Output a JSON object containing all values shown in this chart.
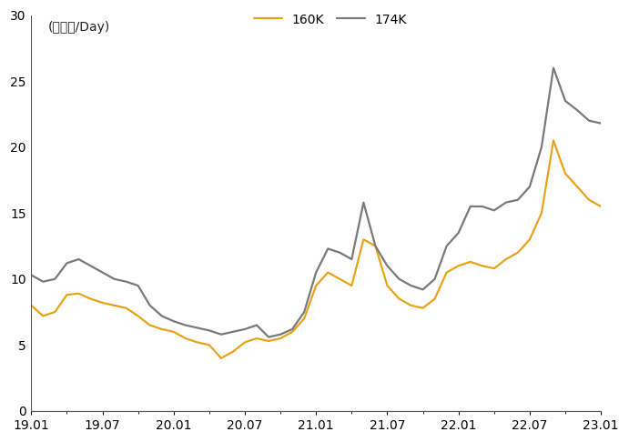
{
  "title_label": "(만달러/Day)",
  "legend_160k": "160K",
  "legend_174k": "174K",
  "color_160k": "#E8A317",
  "color_174k": "#7A7A7A",
  "ylim": [
    0,
    30
  ],
  "yticks": [
    0,
    5,
    10,
    15,
    20,
    25,
    30
  ],
  "xtick_labels": [
    "19.01",
    "19.07",
    "20.01",
    "20.07",
    "21.01",
    "21.07",
    "22.01",
    "22.07",
    "23.01"
  ],
  "x_160k": [
    0.0,
    0.5,
    1.0,
    1.5,
    2.0,
    2.5,
    3.0,
    3.5,
    4.0,
    4.5,
    5.0,
    5.5,
    6.0,
    6.5,
    7.0,
    7.5,
    8.0,
    8.5,
    9.0,
    9.5,
    10.0,
    10.5,
    11.0,
    11.5,
    12.0,
    12.5,
    13.0,
    13.5,
    14.0,
    14.5,
    15.0,
    15.5,
    16.0,
    16.5,
    17.0,
    17.5,
    18.0,
    18.5,
    19.0,
    19.5,
    20.0,
    20.5,
    21.0,
    21.5,
    22.0,
    22.5,
    23.0,
    23.5,
    24.0
  ],
  "y_160k": [
    8.0,
    7.2,
    7.5,
    8.8,
    8.9,
    8.5,
    8.2,
    8.0,
    7.8,
    7.2,
    6.5,
    6.2,
    6.0,
    5.5,
    5.2,
    5.0,
    4.0,
    4.5,
    5.2,
    5.5,
    5.3,
    5.5,
    6.0,
    7.0,
    9.5,
    10.5,
    10.0,
    9.5,
    13.0,
    12.5,
    9.5,
    8.5,
    8.0,
    7.8,
    8.5,
    10.5,
    11.0,
    11.3,
    11.0,
    10.8,
    11.5,
    12.0,
    13.0,
    15.0,
    20.5,
    18.0,
    17.0,
    16.0,
    15.5
  ],
  "x_174k": [
    0.0,
    0.5,
    1.0,
    1.5,
    2.0,
    2.5,
    3.0,
    3.5,
    4.0,
    4.5,
    5.0,
    5.5,
    6.0,
    6.5,
    7.0,
    7.5,
    8.0,
    8.5,
    9.0,
    9.5,
    10.0,
    10.5,
    11.0,
    11.5,
    12.0,
    12.5,
    13.0,
    13.5,
    14.0,
    14.5,
    15.0,
    15.5,
    16.0,
    16.5,
    17.0,
    17.5,
    18.0,
    18.5,
    19.0,
    19.5,
    20.0,
    20.5,
    21.0,
    21.5,
    22.0,
    22.5,
    23.0,
    23.5,
    24.0
  ],
  "y_174k": [
    10.3,
    9.8,
    10.0,
    11.2,
    11.5,
    11.0,
    10.5,
    10.0,
    9.8,
    9.5,
    8.0,
    7.2,
    6.8,
    6.5,
    6.3,
    6.1,
    5.8,
    6.0,
    6.2,
    6.5,
    5.6,
    5.8,
    6.2,
    7.5,
    10.5,
    12.3,
    12.0,
    11.5,
    15.8,
    12.5,
    11.0,
    10.0,
    9.5,
    9.2,
    10.0,
    12.5,
    13.5,
    15.5,
    15.5,
    15.2,
    15.8,
    16.0,
    17.0,
    20.0,
    26.0,
    23.5,
    22.8,
    22.0,
    21.8
  ],
  "xtick_positions": [
    0,
    3,
    6,
    9,
    12,
    15,
    18,
    21,
    24
  ],
  "linewidth": 1.6,
  "bg_color": "#ffffff"
}
